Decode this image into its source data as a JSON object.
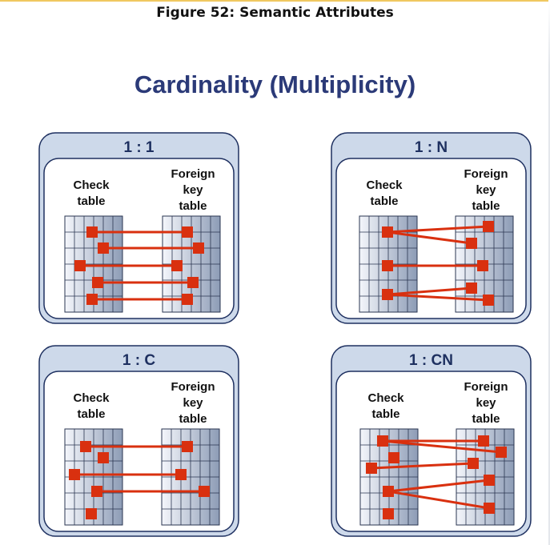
{
  "caption": "Figure 52: Semantic Attributes",
  "title": "Cardinality (Multiplicity)",
  "colors": {
    "header_fill": "#cdd9ea",
    "panel_border": "#1e3060",
    "header_text": "#1e3060",
    "grid_line": "#2a3550",
    "grid_light": "#f4f6fb",
    "grid_dark": "#8d9cb6",
    "link": "#d9300f"
  },
  "panels": [
    {
      "name": "one-to-one",
      "label": "1 : 1",
      "check_label": "Check\ntable",
      "foreign_label": "Foreign\nkey\ntable"
    },
    {
      "name": "one-to-n",
      "label": "1 : N",
      "check_label": "Check\ntable",
      "foreign_label": "Foreign\nkey\ntable"
    },
    {
      "name": "one-to-c",
      "label": "1 : C",
      "check_label": "Check\ntable",
      "foreign_label": "Foreign\nkey\ntable"
    },
    {
      "name": "one-to-cn",
      "label": "1 : CN",
      "check_label": "Check\ntable",
      "foreign_label": "Foreign\nkey\ntable"
    }
  ]
}
